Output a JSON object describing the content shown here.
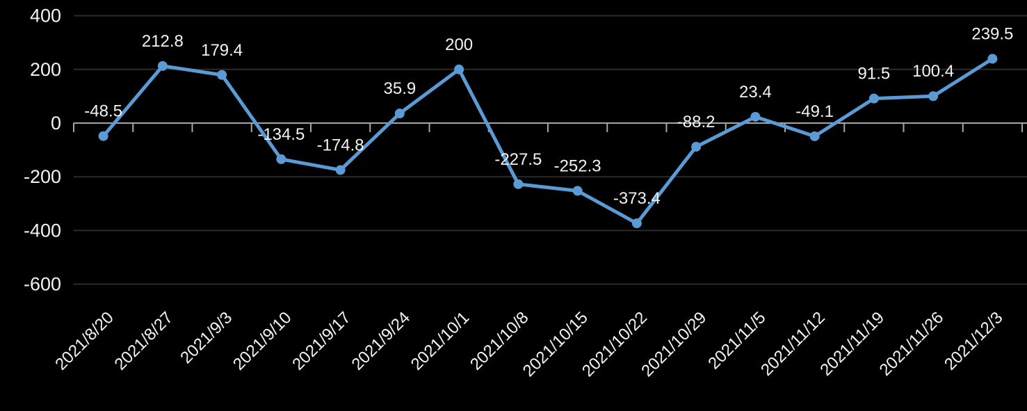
{
  "chart_data": {
    "type": "line",
    "title": "",
    "xlabel": "",
    "ylabel": "",
    "categories": [
      "2021/8/20",
      "2021/8/27",
      "2021/9/3",
      "2021/9/10",
      "2021/9/17",
      "2021/9/24",
      "2021/10/1",
      "2021/10/8",
      "2021/10/15",
      "2021/10/22",
      "2021/10/29",
      "2021/11/5",
      "2021/11/12",
      "2021/11/19",
      "2021/11/26",
      "2021/12/3"
    ],
    "values": [
      -48.5,
      212.8,
      179.4,
      -134.5,
      -174.8,
      35.9,
      200,
      -227.5,
      -252.3,
      -373.4,
      -88.2,
      23.4,
      -49.1,
      91.5,
      100.4,
      239.5
    ],
    "point_labels": [
      "-48.5",
      "212.8",
      "179.4",
      "-134.5",
      "-174.8",
      "35.9",
      "200",
      "-227.5",
      "-252.3",
      "-373.4",
      "-88.2",
      "23.4",
      "-49.1",
      "91.5",
      "100.4",
      "239.5"
    ],
    "ylim": [
      -600,
      400
    ],
    "yticks": [
      400,
      200,
      0,
      -200,
      -400,
      -600
    ],
    "grid": true,
    "legend": false,
    "x_tick_rotation_deg": -45,
    "colors": {
      "background": "#000000",
      "line": "#5B9BD5",
      "marker": "#5B9BD5",
      "gridline": "#2B2B2B",
      "axis": "#A6A6A6",
      "text": "#F2F2F2"
    }
  }
}
